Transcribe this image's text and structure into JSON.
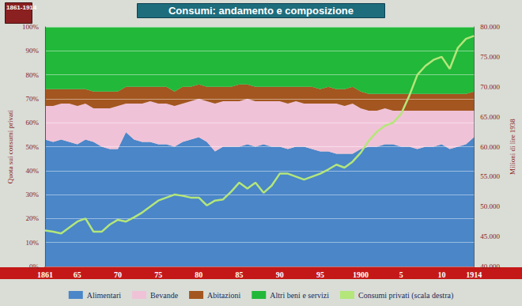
{
  "chart_data": {
    "type": "area",
    "title": "Consumi: andamento e composizione",
    "annotations": [
      "1861-1914"
    ],
    "ylabel": "Quota sui consumi privati",
    "y2label": "Milioni di lire 1938",
    "stacked": true,
    "grid": true,
    "legend": "bottom",
    "categories": [
      "1861",
      null,
      null,
      null,
      "65",
      null,
      null,
      null,
      null,
      "70",
      null,
      null,
      null,
      null,
      "75",
      null,
      null,
      null,
      null,
      "80",
      null,
      null,
      null,
      null,
      "85",
      null,
      null,
      null,
      null,
      "90",
      null,
      null,
      null,
      null,
      "95",
      null,
      null,
      null,
      null,
      "1900",
      null,
      null,
      null,
      null,
      "5",
      null,
      null,
      null,
      null,
      "10",
      null,
      null,
      null,
      "1914"
    ],
    "ylim": [
      0,
      100
    ],
    "yticks": [
      {
        "value": 0,
        "label": "0%"
      },
      {
        "value": 10,
        "label": "10%"
      },
      {
        "value": 20,
        "label": "20%"
      },
      {
        "value": 30,
        "label": "30%"
      },
      {
        "value": 40,
        "label": "40%"
      },
      {
        "value": 50,
        "label": "50%"
      },
      {
        "value": 60,
        "label": "60%"
      },
      {
        "value": 70,
        "label": "70%"
      },
      {
        "value": 80,
        "label": "80%"
      },
      {
        "value": 90,
        "label": "90%"
      },
      {
        "value": 100,
        "label": "100%"
      }
    ],
    "y2lim": [
      40000,
      80000
    ],
    "y2ticks": [
      {
        "value": 40000,
        "label": "40.000"
      },
      {
        "value": 45000,
        "label": "45.000"
      },
      {
        "value": 50000,
        "label": "50.000"
      },
      {
        "value": 55000,
        "label": "55.000"
      },
      {
        "value": 60000,
        "label": "60.000"
      },
      {
        "value": 65000,
        "label": "65.000"
      },
      {
        "value": 70000,
        "label": "70.000"
      },
      {
        "value": 75000,
        "label": "75.000"
      },
      {
        "value": 80000,
        "label": "80.000"
      }
    ],
    "series": [
      {
        "name": "Alimentari",
        "color": "#4a86c8",
        "values": [
          53,
          52,
          53,
          52,
          51,
          53,
          52,
          50,
          49,
          49,
          56,
          53,
          52,
          52,
          51,
          51,
          50,
          52,
          53,
          54,
          52,
          48,
          50,
          50,
          50,
          51,
          50,
          51,
          50,
          50,
          49,
          50,
          50,
          49,
          48,
          48,
          47,
          47,
          47,
          49,
          50,
          50,
          51,
          51,
          50,
          50,
          49,
          50,
          50,
          51,
          49,
          50,
          51,
          54
        ]
      },
      {
        "name": "Bevande",
        "color": "#f0c2d8",
        "values": [
          14,
          15,
          15,
          16,
          16,
          15,
          14,
          16,
          17,
          18,
          12,
          15,
          16,
          17,
          17,
          17,
          17,
          16,
          16,
          16,
          17,
          20,
          19,
          19,
          19,
          19,
          19,
          18,
          19,
          19,
          19,
          19,
          18,
          19,
          20,
          20,
          21,
          20,
          21,
          17,
          15,
          15,
          15,
          14,
          15,
          15,
          16,
          15,
          15,
          14,
          16,
          15,
          14,
          11
        ]
      },
      {
        "name": "Abitazioni",
        "color": "#a3561f",
        "values": [
          7,
          7,
          6,
          6,
          7,
          6,
          7,
          7,
          7,
          6,
          7,
          7,
          7,
          6,
          7,
          7,
          6,
          7,
          6,
          6,
          6,
          7,
          6,
          6,
          7,
          6,
          6,
          6,
          6,
          6,
          7,
          6,
          7,
          7,
          6,
          7,
          6,
          7,
          7,
          7,
          7,
          7,
          6,
          7,
          7,
          7,
          7,
          7,
          7,
          7,
          7,
          7,
          7,
          8
        ]
      },
      {
        "name": "Altri beni e servizi",
        "color": "#22b83a",
        "values": [
          26,
          26,
          26,
          26,
          26,
          26,
          27,
          27,
          27,
          27,
          25,
          25,
          25,
          25,
          25,
          25,
          27,
          25,
          25,
          24,
          25,
          25,
          25,
          25,
          24,
          24,
          25,
          25,
          25,
          25,
          25,
          25,
          25,
          25,
          26,
          25,
          26,
          26,
          25,
          27,
          28,
          28,
          28,
          28,
          28,
          28,
          28,
          28,
          28,
          28,
          28,
          28,
          28,
          27
        ]
      },
      {
        "name": "Consumi privati (scala destra)",
        "color": "#b4e67a",
        "type": "line",
        "axis": "y2",
        "values": [
          46000,
          45800,
          45500,
          46500,
          47500,
          48000,
          45800,
          45800,
          47000,
          47800,
          47500,
          48200,
          49000,
          50000,
          51000,
          51500,
          52000,
          51800,
          51500,
          51500,
          50200,
          51000,
          51200,
          52500,
          54000,
          53000,
          54000,
          52300,
          53500,
          55500,
          55500,
          55000,
          54500,
          55000,
          55500,
          56200,
          57000,
          56500,
          57500,
          59000,
          61000,
          62500,
          63500,
          64000,
          65500,
          68500,
          72000,
          73500,
          74500,
          75000,
          73000,
          76500,
          78000,
          78500
        ]
      }
    ]
  }
}
